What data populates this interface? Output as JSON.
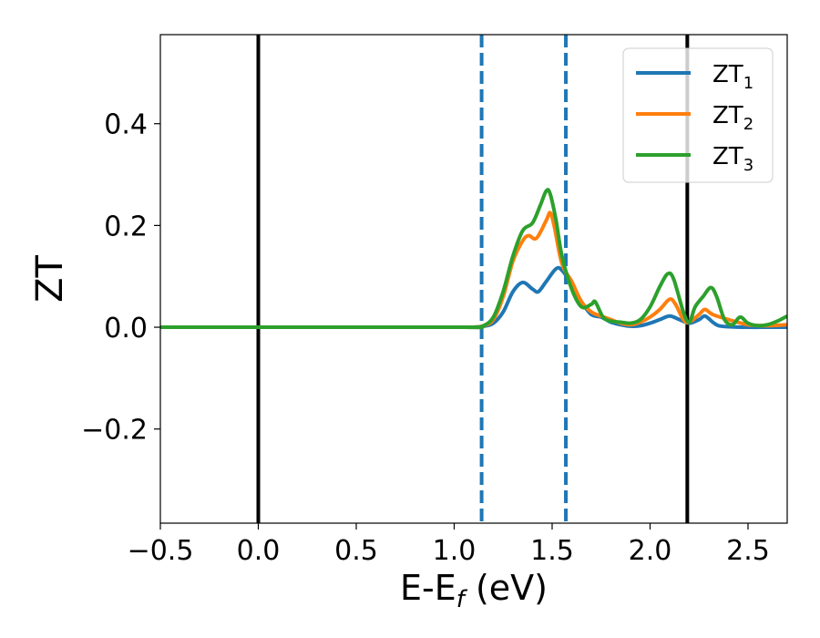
{
  "chart_data": {
    "type": "line",
    "title": "",
    "xlabel": "E-E",
    "xlabel_sub": "f",
    "xlabel_units": " (eV)",
    "ylabel": "ZT",
    "xlim": [
      -0.5,
      2.7
    ],
    "ylim": [
      -0.385,
      0.575
    ],
    "xticks": [
      -0.5,
      0.0,
      0.5,
      1.0,
      1.5,
      2.0,
      2.5
    ],
    "xtick_labels": [
      "−0.5",
      "0.0",
      "0.5",
      "1.0",
      "1.5",
      "2.0",
      "2.5"
    ],
    "yticks": [
      -0.2,
      0.0,
      0.2,
      0.4
    ],
    "ytick_labels": [
      "−0.2",
      "0.0",
      "0.2",
      "0.4"
    ],
    "grid": false,
    "legend_position": "top-right",
    "vlines": [
      {
        "x": 0.0,
        "style": "solid",
        "color": "#000000"
      },
      {
        "x": 2.19,
        "style": "solid",
        "color": "#000000"
      },
      {
        "x": 1.14,
        "style": "dashed",
        "color": "#1f77b4"
      },
      {
        "x": 1.57,
        "style": "dashed",
        "color": "#1f77b4"
      }
    ],
    "series": [
      {
        "name_base": "ZT",
        "name_sub": "1",
        "color": "#1f77b4",
        "points": [
          [
            -0.5,
            0
          ],
          [
            1.0,
            0
          ],
          [
            1.1,
            0
          ],
          [
            1.15,
            0.002
          ],
          [
            1.2,
            0.008
          ],
          [
            1.25,
            0.03
          ],
          [
            1.3,
            0.07
          ],
          [
            1.35,
            0.088
          ],
          [
            1.4,
            0.075
          ],
          [
            1.43,
            0.07
          ],
          [
            1.47,
            0.09
          ],
          [
            1.52,
            0.115
          ],
          [
            1.55,
            0.112
          ],
          [
            1.6,
            0.085
          ],
          [
            1.65,
            0.05
          ],
          [
            1.7,
            0.025
          ],
          [
            1.75,
            0.02
          ],
          [
            1.8,
            0.01
          ],
          [
            1.85,
            0.005
          ],
          [
            1.9,
            0.002
          ],
          [
            1.95,
            0.003
          ],
          [
            2.0,
            0.008
          ],
          [
            2.05,
            0.015
          ],
          [
            2.1,
            0.022
          ],
          [
            2.15,
            0.015
          ],
          [
            2.2,
            0.008
          ],
          [
            2.25,
            0.015
          ],
          [
            2.28,
            0.022
          ],
          [
            2.32,
            0.01
          ],
          [
            2.35,
            0.003
          ],
          [
            2.4,
            0.001
          ],
          [
            2.5,
            0
          ],
          [
            2.6,
            0
          ],
          [
            2.7,
            0
          ]
        ]
      },
      {
        "name_base": "ZT",
        "name_sub": "2",
        "color": "#ff7f0e",
        "points": [
          [
            -0.5,
            0
          ],
          [
            1.0,
            0
          ],
          [
            1.1,
            0
          ],
          [
            1.15,
            0.003
          ],
          [
            1.2,
            0.015
          ],
          [
            1.25,
            0.06
          ],
          [
            1.3,
            0.13
          ],
          [
            1.35,
            0.17
          ],
          [
            1.38,
            0.18
          ],
          [
            1.42,
            0.175
          ],
          [
            1.47,
            0.21
          ],
          [
            1.49,
            0.225
          ],
          [
            1.51,
            0.2
          ],
          [
            1.55,
            0.125
          ],
          [
            1.6,
            0.09
          ],
          [
            1.65,
            0.05
          ],
          [
            1.7,
            0.03
          ],
          [
            1.75,
            0.022
          ],
          [
            1.8,
            0.015
          ],
          [
            1.85,
            0.008
          ],
          [
            1.9,
            0.005
          ],
          [
            1.95,
            0.01
          ],
          [
            2.0,
            0.02
          ],
          [
            2.05,
            0.035
          ],
          [
            2.1,
            0.055
          ],
          [
            2.13,
            0.045
          ],
          [
            2.17,
            0.015
          ],
          [
            2.2,
            0.01
          ],
          [
            2.25,
            0.025
          ],
          [
            2.28,
            0.035
          ],
          [
            2.32,
            0.025
          ],
          [
            2.4,
            0.015
          ],
          [
            2.5,
            0.005
          ],
          [
            2.6,
            0.003
          ],
          [
            2.7,
            0.005
          ]
        ]
      },
      {
        "name_base": "ZT",
        "name_sub": "3",
        "color": "#2ca02c",
        "points": [
          [
            -0.5,
            0
          ],
          [
            1.0,
            0
          ],
          [
            1.1,
            0
          ],
          [
            1.15,
            0.003
          ],
          [
            1.2,
            0.02
          ],
          [
            1.25,
            0.07
          ],
          [
            1.3,
            0.14
          ],
          [
            1.35,
            0.19
          ],
          [
            1.4,
            0.205
          ],
          [
            1.44,
            0.24
          ],
          [
            1.47,
            0.268
          ],
          [
            1.49,
            0.262
          ],
          [
            1.52,
            0.21
          ],
          [
            1.55,
            0.14
          ],
          [
            1.6,
            0.075
          ],
          [
            1.65,
            0.04
          ],
          [
            1.7,
            0.045
          ],
          [
            1.72,
            0.05
          ],
          [
            1.76,
            0.02
          ],
          [
            1.8,
            0.012
          ],
          [
            1.85,
            0.01
          ],
          [
            1.9,
            0.008
          ],
          [
            1.95,
            0.015
          ],
          [
            2.0,
            0.04
          ],
          [
            2.05,
            0.08
          ],
          [
            2.09,
            0.105
          ],
          [
            2.12,
            0.095
          ],
          [
            2.17,
            0.03
          ],
          [
            2.2,
            0.01
          ],
          [
            2.23,
            0.04
          ],
          [
            2.27,
            0.06
          ],
          [
            2.31,
            0.078
          ],
          [
            2.34,
            0.06
          ],
          [
            2.38,
            0.015
          ],
          [
            2.42,
            0.005
          ],
          [
            2.46,
            0.02
          ],
          [
            2.5,
            0.008
          ],
          [
            2.55,
            0.003
          ],
          [
            2.6,
            0.005
          ],
          [
            2.65,
            0.012
          ],
          [
            2.7,
            0.022
          ]
        ]
      }
    ]
  }
}
